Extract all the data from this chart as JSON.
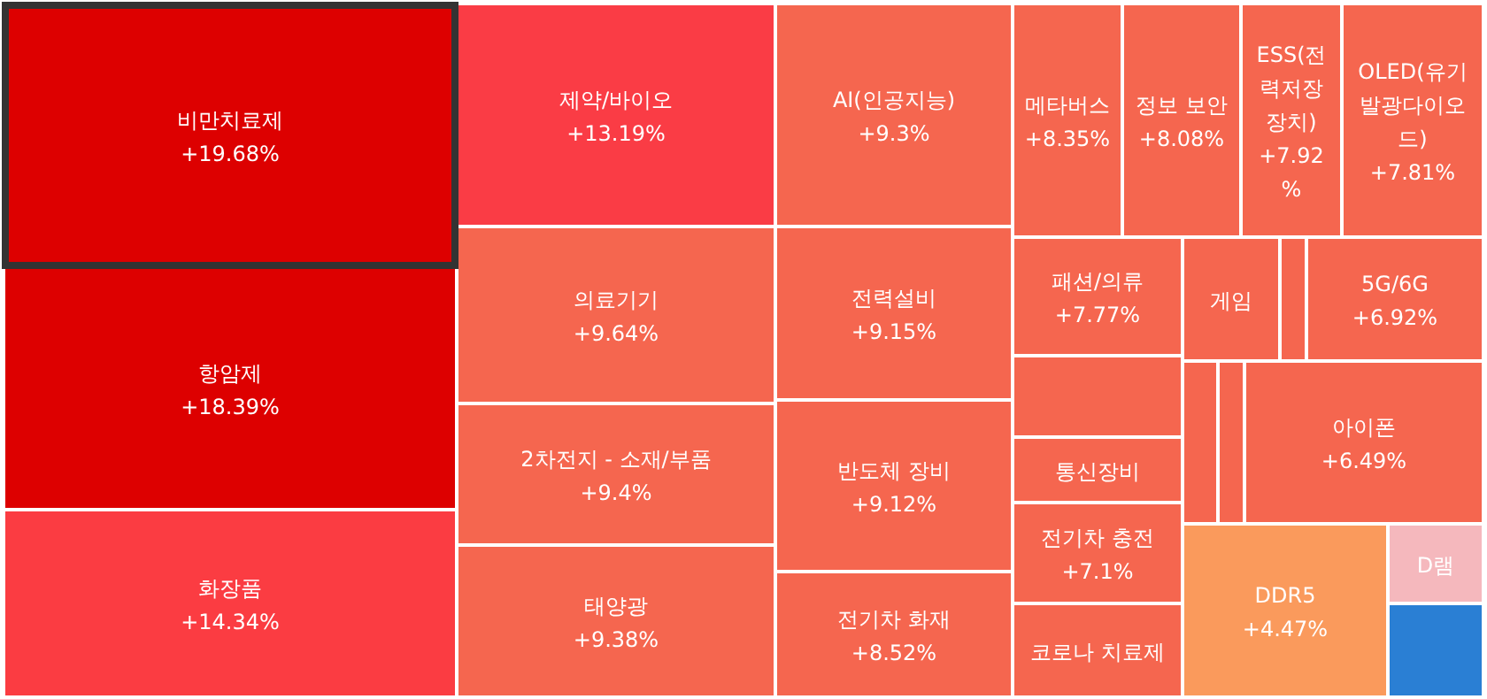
{
  "chart_data": {
    "type": "other",
    "categories": [
      "비만치료제",
      "항암제",
      "화장품",
      "제약/바이오",
      "의료기기",
      "2차전지 - 소재/부품",
      "태양광",
      "AI(인공지능)",
      "전력설비",
      "반도체 장비",
      "전기차 화재",
      "메타버스",
      "정보 보안",
      "ESS(전력저장장치)",
      "OLED(유기발광다이오드)",
      "패션/의류",
      null,
      "게임",
      null,
      "5G/6G",
      "통신장비",
      "전기차 충전",
      "코로나 치료제",
      null,
      null,
      "아이폰",
      "DDR5",
      "D램",
      null
    ],
    "values": [
      19.68,
      18.39,
      14.34,
      13.19,
      9.64,
      9.4,
      9.38,
      9.3,
      9.15,
      9.12,
      8.52,
      8.35,
      8.08,
      7.92,
      7.81,
      7.77,
      null,
      null,
      null,
      6.92,
      null,
      7.1,
      null,
      null,
      null,
      6.49,
      4.47,
      null,
      null
    ],
    "value_labels": [
      "+19.68%",
      "+18.39%",
      "+14.34%",
      "+13.19%",
      "+9.64%",
      "+9.4%",
      "+9.38%",
      "+9.3%",
      "+9.15%",
      "+9.12%",
      "+8.52%",
      "+8.35%",
      "+8.08%",
      "+7.92%",
      "+7.81%",
      "+7.77%",
      null,
      null,
      null,
      "+6.92%",
      null,
      "+7.1%",
      null,
      null,
      null,
      "+6.49%",
      "+4.47%",
      null,
      null
    ],
    "colors": [
      "#dd0000",
      "#dd0000",
      "#fb3c42",
      "#fa3c45",
      "#f5664f",
      "#f5664f",
      "#f5664f",
      "#f5664f",
      "#f5664f",
      "#f5664f",
      "#f5664f",
      "#f5664f",
      "#f5664f",
      "#f5664f",
      "#f5664f",
      "#f5664f",
      "#f5664f",
      "#f5664f",
      "#f5664f",
      "#f5664f",
      "#f5664f",
      "#f5664f",
      "#f5664f",
      "#f5664f",
      "#f5664f",
      "#f5664f",
      "#fa9a5c",
      "#f5b8bd",
      "#2a7fd4"
    ]
  }
}
